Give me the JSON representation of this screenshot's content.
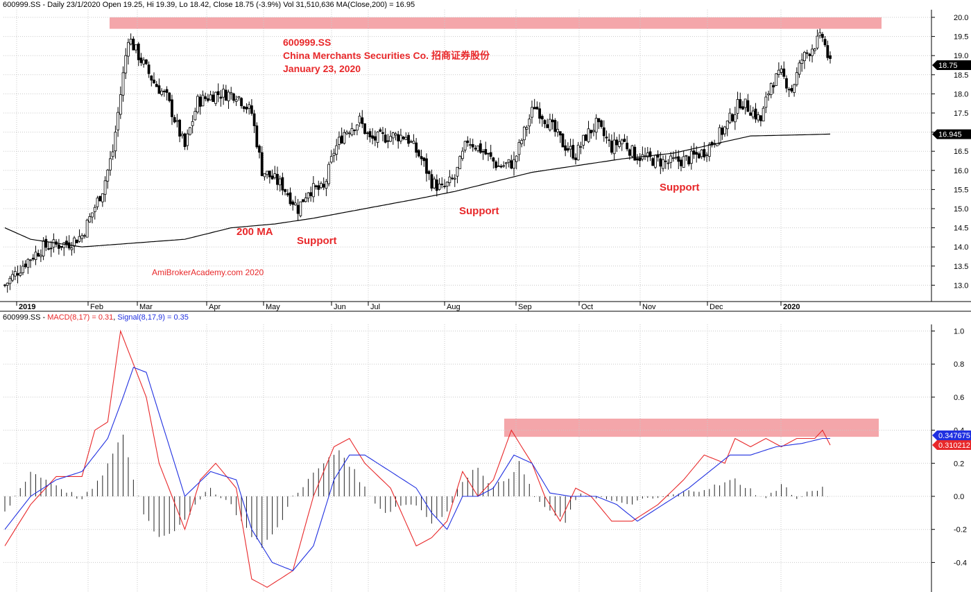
{
  "header": {
    "price_info": "600999.SS - Daily 23/1/2020 Open 19.25, Hi 19.39, Lo 18.42, Close 18.75 (-3.9%) Vol 31,510,636 MA(Close,200) = 16.95",
    "macd_prefix": "600999.SS - ",
    "macd_label": "MACD(8,17) = 0.31",
    "sep": ", ",
    "signal_label": "Signal(8,17,9) = 0.35"
  },
  "title": {
    "ticker": "600999.SS",
    "company": "China Merchants Securities Co. 招商证券股份",
    "date": "January 23, 2020"
  },
  "annotations": {
    "ma": "200 MA",
    "support1": "Support",
    "support2": "Support",
    "support3": "Support",
    "watermark": "AmiBrokerAcademy.com   2020"
  },
  "colors": {
    "macd": "#e8282a",
    "signal": "#2030e0",
    "highlight": "#f4a6aa",
    "ma": "#000000",
    "price_badge": "#000000",
    "macd_badge": "#e8282a",
    "signal_badge": "#2030e0"
  },
  "chart_data": [
    {
      "type": "candlestick",
      "series_labels": {
        "ma": "200 MA"
      },
      "y_ticks": [
        13.0,
        13.5,
        14.0,
        14.5,
        15.0,
        15.5,
        16.0,
        16.5,
        17.0,
        17.5,
        18.0,
        18.5,
        19.0,
        19.5,
        20.0
      ],
      "y_tick_labels": [
        "13.0",
        "13.5",
        "14.0",
        "14.5",
        "15.0",
        "15.5",
        "16.0",
        "16.5",
        "17.0",
        "17.5",
        "18.0",
        "18.5",
        "19.0",
        "19.5",
        "20.0"
      ],
      "ylim": [
        12.5,
        20.3
      ],
      "x_labels": [
        "2019",
        "Feb",
        "Mar",
        "Apr",
        "May",
        "Jun",
        "Jul",
        "Aug",
        "Sep",
        "Oct",
        "Nov",
        "Dec",
        "2020"
      ],
      "last_close": 18.75,
      "last_close_label": "18.75",
      "ma_value": 16.945,
      "ma_value_label": "16.945",
      "resistance_zone": [
        19.7,
        20.0
      ],
      "close_path": [
        [
          0,
          13.0
        ],
        [
          8,
          13.6
        ],
        [
          15,
          14.0
        ],
        [
          25,
          14.1
        ],
        [
          30,
          14.3
        ],
        [
          38,
          15.5
        ],
        [
          42,
          16.5
        ],
        [
          48,
          19.5
        ],
        [
          52,
          19.0
        ],
        [
          58,
          18.3
        ],
        [
          63,
          17.9
        ],
        [
          70,
          16.6
        ],
        [
          75,
          17.8
        ],
        [
          82,
          18.0
        ],
        [
          90,
          18.0
        ],
        [
          96,
          17.5
        ],
        [
          100,
          16.0
        ],
        [
          108,
          15.6
        ],
        [
          114,
          15.0
        ],
        [
          118,
          15.5
        ],
        [
          124,
          15.5
        ],
        [
          128,
          16.5
        ],
        [
          132,
          17.0
        ],
        [
          138,
          17.3
        ],
        [
          142,
          16.8
        ],
        [
          150,
          16.9
        ],
        [
          156,
          16.9
        ],
        [
          162,
          16.3
        ],
        [
          166,
          15.7
        ],
        [
          170,
          15.5
        ],
        [
          175,
          15.8
        ],
        [
          180,
          16.8
        ],
        [
          186,
          16.5
        ],
        [
          192,
          16.1
        ],
        [
          198,
          16.2
        ],
        [
          202,
          17.0
        ],
        [
          206,
          17.7
        ],
        [
          212,
          17.2
        ],
        [
          217,
          16.7
        ],
        [
          222,
          16.4
        ],
        [
          226,
          16.9
        ],
        [
          230,
          17.2
        ],
        [
          236,
          16.6
        ],
        [
          240,
          16.8
        ],
        [
          245,
          16.4
        ],
        [
          250,
          16.3
        ],
        [
          258,
          16.2
        ],
        [
          266,
          16.3
        ],
        [
          272,
          16.5
        ],
        [
          276,
          16.8
        ],
        [
          280,
          17.1
        ],
        [
          286,
          17.8
        ],
        [
          290,
          17.6
        ],
        [
          294,
          17.3
        ],
        [
          298,
          18.3
        ],
        [
          302,
          18.5
        ],
        [
          306,
          18.1
        ],
        [
          310,
          18.9
        ],
        [
          315,
          19.3
        ],
        [
          318,
          19.5
        ],
        [
          321,
          18.75
        ]
      ],
      "ma_path": [
        [
          0,
          14.5
        ],
        [
          10,
          14.2
        ],
        [
          30,
          14.0
        ],
        [
          50,
          14.1
        ],
        [
          70,
          14.2
        ],
        [
          88,
          14.5
        ],
        [
          105,
          14.6
        ],
        [
          120,
          14.75
        ],
        [
          140,
          15.0
        ],
        [
          160,
          15.25
        ],
        [
          175,
          15.45
        ],
        [
          190,
          15.7
        ],
        [
          205,
          15.95
        ],
        [
          220,
          16.1
        ],
        [
          240,
          16.3
        ],
        [
          260,
          16.45
        ],
        [
          280,
          16.75
        ],
        [
          290,
          16.9
        ],
        [
          310,
          16.93
        ],
        [
          321,
          16.95
        ]
      ]
    },
    {
      "type": "line",
      "series": [
        {
          "name": "MACD(8,17)",
          "path": [
            [
              0,
              -0.3
            ],
            [
              10,
              -0.05
            ],
            [
              20,
              0.12
            ],
            [
              30,
              0.12
            ],
            [
              35,
              0.4
            ],
            [
              40,
              0.45
            ],
            [
              45,
              1.0
            ],
            [
              50,
              0.8
            ],
            [
              55,
              0.6
            ],
            [
              60,
              0.2
            ],
            [
              70,
              -0.2
            ],
            [
              76,
              0.1
            ],
            [
              82,
              0.2
            ],
            [
              90,
              0.05
            ],
            [
              96,
              -0.5
            ],
            [
              102,
              -0.55
            ],
            [
              112,
              -0.45
            ],
            [
              120,
              0.0
            ],
            [
              128,
              0.3
            ],
            [
              134,
              0.35
            ],
            [
              140,
              0.2
            ],
            [
              150,
              0.05
            ],
            [
              160,
              -0.3
            ],
            [
              166,
              -0.25
            ],
            [
              172,
              -0.15
            ],
            [
              178,
              0.15
            ],
            [
              184,
              0.0
            ],
            [
              190,
              0.1
            ],
            [
              197,
              0.4
            ],
            [
              205,
              0.2
            ],
            [
              210,
              0.0
            ],
            [
              216,
              -0.15
            ],
            [
              222,
              0.05
            ],
            [
              228,
              0.0
            ],
            [
              236,
              -0.15
            ],
            [
              244,
              -0.15
            ],
            [
              254,
              -0.05
            ],
            [
              264,
              0.1
            ],
            [
              272,
              0.25
            ],
            [
              280,
              0.2
            ],
            [
              284,
              0.35
            ],
            [
              290,
              0.3
            ],
            [
              296,
              0.35
            ],
            [
              302,
              0.3
            ],
            [
              308,
              0.35
            ],
            [
              315,
              0.35
            ],
            [
              318,
              0.4
            ],
            [
              321,
              0.31
            ]
          ]
        },
        {
          "name": "Signal(8,17,9)",
          "path": [
            [
              0,
              -0.2
            ],
            [
              10,
              0.0
            ],
            [
              20,
              0.1
            ],
            [
              30,
              0.15
            ],
            [
              40,
              0.35
            ],
            [
              46,
              0.6
            ],
            [
              50,
              0.78
            ],
            [
              55,
              0.75
            ],
            [
              62,
              0.4
            ],
            [
              70,
              0.0
            ],
            [
              80,
              0.15
            ],
            [
              90,
              0.1
            ],
            [
              96,
              -0.2
            ],
            [
              104,
              -0.4
            ],
            [
              112,
              -0.45
            ],
            [
              120,
              -0.3
            ],
            [
              128,
              0.1
            ],
            [
              134,
              0.25
            ],
            [
              140,
              0.25
            ],
            [
              150,
              0.15
            ],
            [
              160,
              0.05
            ],
            [
              166,
              -0.1
            ],
            [
              172,
              -0.2
            ],
            [
              178,
              0.0
            ],
            [
              184,
              0.0
            ],
            [
              190,
              0.05
            ],
            [
              198,
              0.25
            ],
            [
              205,
              0.2
            ],
            [
              212,
              0.02
            ],
            [
              220,
              0.0
            ],
            [
              230,
              0.0
            ],
            [
              238,
              -0.05
            ],
            [
              246,
              -0.15
            ],
            [
              256,
              -0.05
            ],
            [
              266,
              0.05
            ],
            [
              274,
              0.15
            ],
            [
              282,
              0.25
            ],
            [
              290,
              0.25
            ],
            [
              300,
              0.3
            ],
            [
              310,
              0.32
            ],
            [
              318,
              0.35
            ],
            [
              321,
              0.35
            ]
          ]
        }
      ],
      "histogram_path": [
        [
          0,
          -0.1
        ],
        [
          6,
          0.05
        ],
        [
          10,
          0.15
        ],
        [
          16,
          0.1
        ],
        [
          22,
          0.05
        ],
        [
          30,
          -0.02
        ],
        [
          36,
          0.08
        ],
        [
          42,
          0.25
        ],
        [
          46,
          0.38
        ],
        [
          50,
          0.1
        ],
        [
          54,
          -0.1
        ],
        [
          60,
          -0.25
        ],
        [
          66,
          -0.2
        ],
        [
          72,
          -0.1
        ],
        [
          80,
          0.05
        ],
        [
          88,
          -0.05
        ],
        [
          94,
          -0.2
        ],
        [
          100,
          -0.3
        ],
        [
          106,
          -0.2
        ],
        [
          112,
          0.0
        ],
        [
          118,
          0.1
        ],
        [
          124,
          0.2
        ],
        [
          130,
          0.28
        ],
        [
          136,
          0.15
        ],
        [
          142,
          0.0
        ],
        [
          148,
          -0.1
        ],
        [
          154,
          -0.05
        ],
        [
          160,
          -0.05
        ],
        [
          166,
          -0.15
        ],
        [
          172,
          -0.1
        ],
        [
          178,
          0.1
        ],
        [
          184,
          0.18
        ],
        [
          190,
          0.05
        ],
        [
          196,
          0.12
        ],
        [
          200,
          0.2
        ],
        [
          206,
          0.0
        ],
        [
          212,
          -0.1
        ],
        [
          218,
          -0.15
        ],
        [
          224,
          0.02
        ],
        [
          230,
          0.0
        ],
        [
          240,
          -0.05
        ],
        [
          250,
          -0.02
        ],
        [
          258,
          0.0
        ],
        [
          266,
          0.03
        ],
        [
          276,
          0.06
        ],
        [
          284,
          0.1
        ],
        [
          290,
          0.04
        ],
        [
          296,
          -0.02
        ],
        [
          302,
          0.08
        ],
        [
          308,
          -0.02
        ],
        [
          314,
          0.04
        ],
        [
          318,
          0.05
        ],
        [
          321,
          -0.03
        ]
      ],
      "y_ticks": [
        -0.4,
        -0.2,
        0.0,
        0.2,
        0.4,
        0.6,
        0.8,
        1.0
      ],
      "y_tick_labels": [
        "-0.4",
        "-0.2",
        "0.0",
        "0.2",
        "0.4",
        "0.6",
        "0.8",
        "1.0"
      ],
      "ylim": [
        -0.58,
        1.08
      ],
      "highlight_zone": [
        0.36,
        0.47
      ],
      "signal_value_label": "0.347675",
      "macd_value_label": "0.310212"
    }
  ]
}
